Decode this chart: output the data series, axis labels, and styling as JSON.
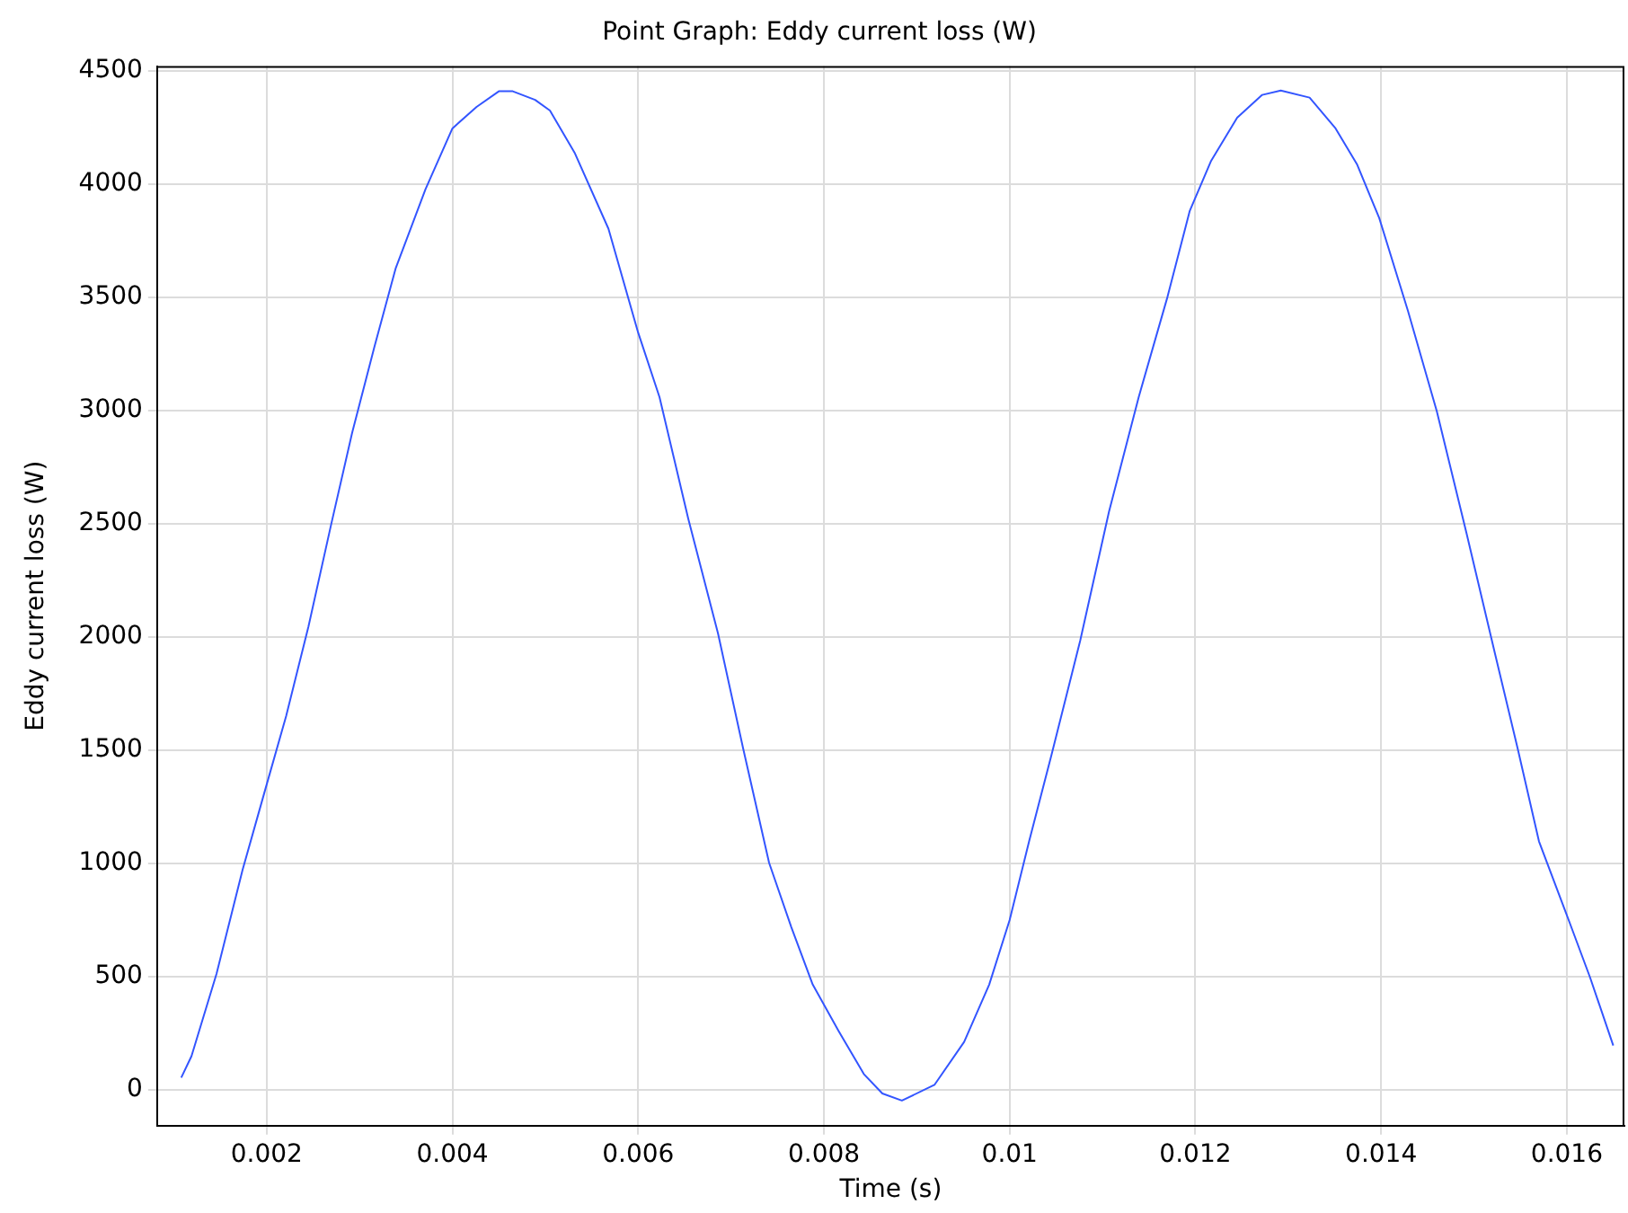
{
  "chart_data": {
    "type": "line",
    "title": "Point Graph: Eddy current loss (W)",
    "xlabel": "Time (s)",
    "ylabel": "Eddy current loss (W)",
    "xlim": [
      0.00082,
      0.01662
    ],
    "xticks": [
      0.002,
      0.004,
      0.006,
      0.008,
      0.01,
      0.012,
      0.014,
      0.016
    ],
    "ylim": [
      -158,
      4522
    ],
    "yticks": [
      0,
      500,
      1000,
      1500,
      2000,
      2500,
      3000,
      3500,
      4000,
      4500
    ],
    "grid": true,
    "legend": false,
    "marker": "none",
    "line_style": "solid",
    "series": [
      {
        "color": "#3355ff",
        "x": [
          0.00108,
          0.00119,
          0.00146,
          0.00174,
          0.00198,
          0.00221,
          0.00245,
          0.00269,
          0.00292,
          0.00316,
          0.00339,
          0.00371,
          0.004,
          0.00426,
          0.0045,
          0.00465,
          0.00489,
          0.00505,
          0.00532,
          0.00568,
          0.006,
          0.00623,
          0.00654,
          0.00686,
          0.00713,
          0.00741,
          0.00765,
          0.00788,
          0.00816,
          0.00843,
          0.00863,
          0.00884,
          0.00919,
          0.00951,
          0.00978,
          0.01,
          0.01021,
          0.01045,
          0.01076,
          0.01107,
          0.01139,
          0.0117,
          0.01194,
          0.01217,
          0.01245,
          0.01272,
          0.01292,
          0.01323,
          0.01351,
          0.01374,
          0.01398,
          0.01429,
          0.0146,
          0.01492,
          0.01523,
          0.01547,
          0.0157,
          0.01602,
          0.01625,
          0.0165
        ],
        "values": [
          54,
          149,
          513,
          971,
          1320,
          1652,
          2047,
          2490,
          2902,
          3282,
          3630,
          3978,
          4247,
          4342,
          4411,
          4411,
          4373,
          4326,
          4136,
          3804,
          3345,
          3060,
          2522,
          2016,
          1509,
          1003,
          718,
          465,
          259,
          70,
          -16,
          -47,
          22,
          212,
          465,
          750,
          1098,
          1478,
          1984,
          2554,
          3060,
          3503,
          3883,
          4104,
          4294,
          4395,
          4414,
          4383,
          4247,
          4089,
          3851,
          3440,
          2997,
          2459,
          1921,
          1509,
          1098,
          750,
          497,
          196
        ]
      }
    ]
  }
}
